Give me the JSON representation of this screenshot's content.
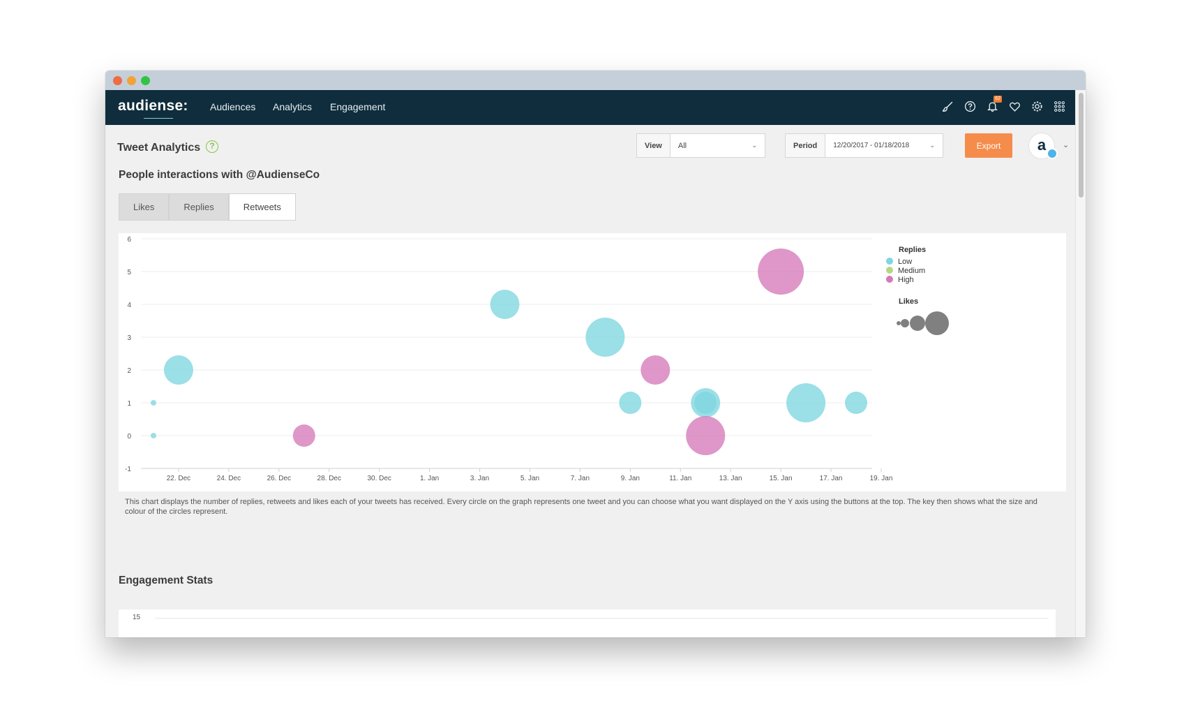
{
  "app": {
    "logo_text": "audiense:",
    "nav": [
      "Audiences",
      "Analytics",
      "Engagement"
    ],
    "notification_count": "62",
    "icons": [
      "brush-icon",
      "help-icon",
      "bell-icon",
      "heart-icon",
      "gear-icon",
      "grid-icon"
    ]
  },
  "page": {
    "title": "Tweet Analytics",
    "help": "?",
    "view_label": "View",
    "view_value": "All",
    "period_label": "Period",
    "period_value": "12/20/2017 - 01/18/2018",
    "export_label": "Export",
    "avatar_text": "a"
  },
  "section": {
    "title": "People interactions with @AudienseCo",
    "tabs": [
      {
        "label": "Likes",
        "active": false
      },
      {
        "label": "Replies",
        "active": false
      },
      {
        "label": "Retweets",
        "active": true
      }
    ]
  },
  "chart_data": {
    "type": "scatter",
    "x_ticks": [
      "22. Dec",
      "24. Dec",
      "26. Dec",
      "28. Dec",
      "30. Dec",
      "1. Jan",
      "3. Jan",
      "5. Jan",
      "7. Jan",
      "9. Jan",
      "11. Jan",
      "13. Jan",
      "15. Jan",
      "17. Jan",
      "19. Jan"
    ],
    "y_ticks": [
      6,
      5,
      4,
      3,
      2,
      1,
      0,
      -1
    ],
    "ylim": [
      -1,
      6
    ],
    "xlim_days": [
      "2017-12-21",
      "2018-01-19"
    ],
    "grid": true,
    "legend": {
      "color_title": "Replies",
      "color_entries": [
        {
          "label": "Low",
          "color": "#7fd6e0"
        },
        {
          "label": "Medium",
          "color": "#b7d786"
        },
        {
          "label": "High",
          "color": "#d57ab8"
        }
      ],
      "size_title": "Likes",
      "placement": "right"
    },
    "points": [
      {
        "date": "2017-12-21",
        "y": 1,
        "size": "xs",
        "level": "Low"
      },
      {
        "date": "2017-12-21",
        "y": 0,
        "size": "xs",
        "level": "Low"
      },
      {
        "date": "2017-12-22",
        "y": 2,
        "size": "m",
        "level": "Low"
      },
      {
        "date": "2017-12-27",
        "y": 0,
        "size": "s",
        "level": "High"
      },
      {
        "date": "2018-01-04",
        "y": 4,
        "size": "m",
        "level": "Low"
      },
      {
        "date": "2018-01-08",
        "y": 3,
        "size": "l",
        "level": "Low"
      },
      {
        "date": "2018-01-09",
        "y": 1,
        "size": "s",
        "level": "Low"
      },
      {
        "date": "2018-01-10",
        "y": 2,
        "size": "m",
        "level": "High"
      },
      {
        "date": "2018-01-12",
        "y": 1,
        "size": "m",
        "level": "Low"
      },
      {
        "date": "2018-01-12",
        "y": 1,
        "size": "s",
        "level": "Low"
      },
      {
        "date": "2018-01-12",
        "y": 0,
        "size": "l",
        "level": "High"
      },
      {
        "date": "2018-01-15",
        "y": 5,
        "size": "xl",
        "level": "High"
      },
      {
        "date": "2018-01-16",
        "y": 1,
        "size": "l",
        "level": "Low"
      },
      {
        "date": "2018-01-18",
        "y": 1,
        "size": "s",
        "level": "Low"
      }
    ]
  },
  "description": "This chart displays the number of replies, retweets and likes each of your tweets has received. Every circle on the graph represents one tweet and you can choose what you want displayed on the Y axis using the buttons at the top. The key then shows what the size and colour of the circles represent.",
  "engagement": {
    "title": "Engagement Stats",
    "first_tick": "15"
  }
}
